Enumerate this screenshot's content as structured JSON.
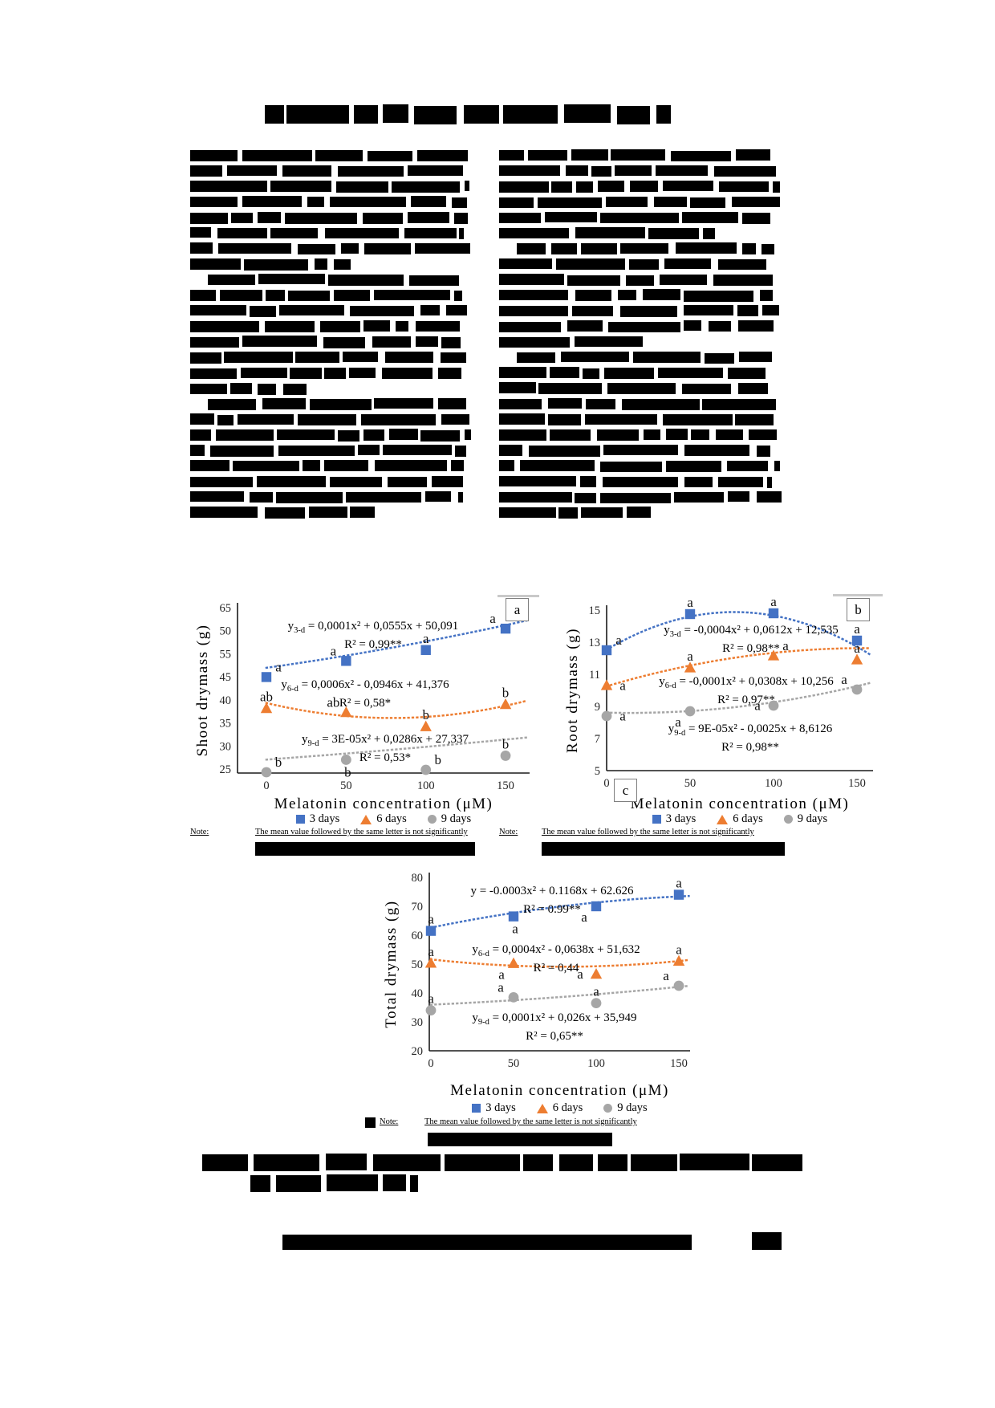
{
  "figure_note": {
    "label": "Note:",
    "text": "The mean value followed by the same letter is not significantly"
  },
  "chart_data": [
    {
      "id": "a",
      "panel_label": "a",
      "type": "scatter",
      "ylabel": "Shoot drymass (g)",
      "xlabel": "Melatonin concentration (μM)",
      "ylim": [
        25,
        65
      ],
      "y_tick_labels": [
        "65",
        "50",
        "55",
        "45",
        "40",
        "35",
        "30",
        "25"
      ],
      "x_tick_labels": [
        "0",
        "50",
        "100",
        "150"
      ],
      "x": [
        0,
        50,
        100,
        150
      ],
      "grid": false,
      "legend_position": "bottom",
      "series": [
        {
          "name": "3 days",
          "marker": "square",
          "color": "#4472C4",
          "values": [
            47.8,
            51.8,
            54.5,
            59.8
          ],
          "sig_letters": [
            "a",
            "a",
            "a",
            "a"
          ],
          "letter_pos": [
            "ar",
            "al",
            "a",
            "al"
          ],
          "trend": {
            "a": 0.0001,
            "b": 0.0555,
            "c": 50.091
          },
          "eq_lhs": "y",
          "eq_sub": "3-d",
          "eq_rhs": " = 0,0001x² + 0,0555x + 50,091",
          "r2": "R² = 0,99**"
        },
        {
          "name": "6 days",
          "marker": "triangle",
          "color": "#ED7D31",
          "values": [
            40,
            39,
            35.5,
            41
          ],
          "sig_letters": [
            "ab",
            "ab",
            "b",
            "b"
          ],
          "letter_pos": [
            "a",
            "al",
            "a",
            "a"
          ],
          "trend": {
            "a": 0.0006,
            "b": -0.0946,
            "c": 41.376
          },
          "eq_lhs": "y",
          "eq_sub": "6-d",
          "eq_rhs": " = 0,0006x² - 0,0946x + 41,376",
          "r2": "R² = 0,58*"
        },
        {
          "name": "9 days",
          "marker": "circle",
          "color": "#A6A6A6",
          "values": [
            24.2,
            27.3,
            24.8,
            28.3
          ],
          "sig_letters": [
            "b",
            "b",
            "b",
            "b"
          ],
          "letter_pos": [
            "ar",
            "b",
            "ar",
            "a"
          ],
          "trend": {
            "a": 3e-05,
            "b": 0.0286,
            "c": 27.337
          },
          "eq_lhs": "y",
          "eq_sub": "9-d",
          "eq_rhs": " = 3E-05x² + 0,0286x + 27,337",
          "r2": "R² = 0,53*"
        }
      ]
    },
    {
      "id": "b",
      "panel_label": "b",
      "type": "scatter",
      "ylabel": "Root drymass (g)",
      "xlabel": "Melatonin concentration (μM)",
      "ylim": [
        5,
        15
      ],
      "y_tick_labels": [
        "15",
        "13",
        "11",
        "9",
        "7",
        "5"
      ],
      "x_tick_labels": [
        "0",
        "50",
        "100",
        "150"
      ],
      "x": [
        0,
        50,
        100,
        150
      ],
      "grid": false,
      "legend_position": "bottom",
      "series": [
        {
          "name": "3 days",
          "marker": "square",
          "color": "#4472C4",
          "values": [
            12.5,
            14.75,
            14.8,
            13.1
          ],
          "sig_letters": [
            "a",
            "a",
            "a",
            "a"
          ],
          "letter_pos": [
            "ar",
            "a",
            "a",
            "a"
          ],
          "trend": {
            "a": -0.0004,
            "b": 0.0612,
            "c": 12.535
          },
          "eq_lhs": "y",
          "eq_sub": "3-d",
          "eq_rhs": " = -0,0004x² + 0,0612x + 12,535",
          "r2": "R² = 0,98**"
        },
        {
          "name": "6 days",
          "marker": "triangle",
          "color": "#ED7D31",
          "values": [
            10.3,
            11.4,
            12.15,
            11.9
          ],
          "sig_letters": [
            "a",
            "a",
            "a",
            "a"
          ],
          "letter_pos": [
            "r",
            "a",
            "ar",
            "a"
          ],
          "trend": {
            "a": -0.0001,
            "b": 0.0308,
            "c": 10.256
          },
          "eq_lhs": "y",
          "eq_sub": "6-d",
          "eq_rhs": " = -0,0001x² + 0,0308x + 10,256",
          "r2": "R² = 0,97**"
        },
        {
          "name": "9 days",
          "marker": "circle",
          "color": "#A6A6A6",
          "values": [
            8.4,
            8.7,
            9.05,
            10.05
          ],
          "sig_letters": [
            "a",
            "a",
            "a",
            "a"
          ],
          "letter_pos": [
            "r",
            "bl",
            "l",
            "al"
          ],
          "trend": {
            "a": 9e-05,
            "b": -0.0025,
            "c": 8.6126
          },
          "eq_lhs": "y",
          "eq_sub": "9-d",
          "eq_rhs": " = 9E-05x² - 0,0025x + 8,6126",
          "r2": "R² = 0,98**"
        }
      ]
    },
    {
      "id": "c",
      "panel_label": "c",
      "type": "scatter",
      "ylabel": "Total drymass (g)",
      "xlabel": "Melatonin concentration (μM)",
      "ylim": [
        20,
        80
      ],
      "y_tick_labels": [
        "80",
        "70",
        "60",
        "50",
        "40",
        "30",
        "20"
      ],
      "x_tick_labels": [
        "0",
        "50",
        "100",
        "150"
      ],
      "x": [
        0,
        50,
        100,
        150
      ],
      "grid": false,
      "legend_position": "bottom",
      "series": [
        {
          "name": "3 days",
          "marker": "square",
          "color": "#4472C4",
          "values": [
            61.5,
            66.5,
            70,
            74
          ],
          "sig_letters": [
            "a",
            "a",
            "a",
            "a"
          ],
          "letter_pos": [
            "a",
            "b",
            "bl",
            "a"
          ],
          "trend": {
            "a": -0.0003,
            "b": 0.1168,
            "c": 62.626
          },
          "eq_lhs": "y",
          "eq_sub": "",
          "eq_rhs": " = -0.0003x² + 0.1168x + 62.626",
          "r2": "R² = 0.99**"
        },
        {
          "name": "6 days",
          "marker": "triangle",
          "color": "#ED7D31",
          "values": [
            50.3,
            50.2,
            46.5,
            51
          ],
          "sig_letters": [
            "a",
            "a",
            "a",
            "a"
          ],
          "letter_pos": [
            "a",
            "bl",
            "l",
            "a"
          ],
          "trend": {
            "a": 0.0004,
            "b": -0.0638,
            "c": 51.632
          },
          "eq_lhs": "y",
          "eq_sub": "6-d",
          "eq_rhs": " = 0,0004x² - 0,0638x + 51,632",
          "r2": "R² = 0,44"
        },
        {
          "name": "9 days",
          "marker": "circle",
          "color": "#A6A6A6",
          "values": [
            34,
            38.5,
            36.5,
            42.5
          ],
          "sig_letters": [
            "a",
            "a",
            "a",
            "a"
          ],
          "letter_pos": [
            "a",
            "al",
            "a",
            "al"
          ],
          "trend": {
            "a": 0.0001,
            "b": 0.026,
            "c": 35.949
          },
          "eq_lhs": "y",
          "eq_sub": "9-d",
          "eq_rhs": " = 0,0001x² + 0,026x + 35,949",
          "r2": "R² = 0,65**"
        }
      ]
    }
  ]
}
